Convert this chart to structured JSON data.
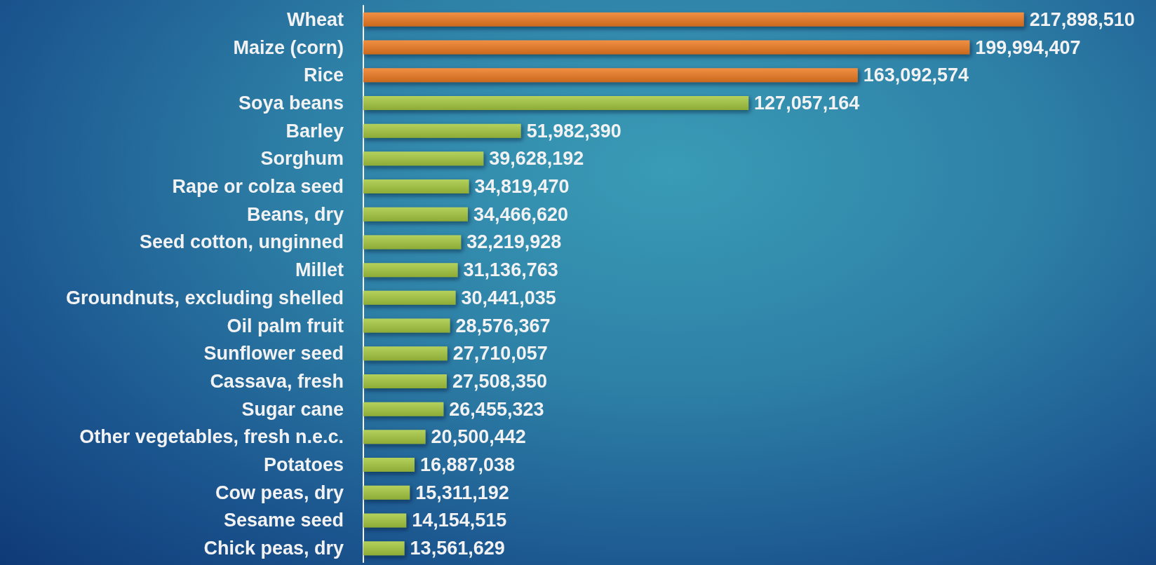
{
  "chart_data": {
    "type": "bar",
    "orientation": "horizontal",
    "categories": [
      "Wheat",
      "Maize (corn)",
      "Rice",
      "Soya beans",
      "Barley",
      "Sorghum",
      "Rape or colza seed",
      "Beans, dry",
      "Seed cotton, unginned",
      "Millet",
      "Groundnuts, excluding shelled",
      "Oil palm fruit",
      "Sunflower seed",
      "Cassava, fresh",
      "Sugar cane",
      "Other vegetables, fresh n.e.c.",
      "Potatoes",
      "Cow peas, dry",
      "Sesame seed",
      "Chick peas, dry"
    ],
    "values": [
      217898510,
      199994407,
      163092574,
      127057164,
      51982390,
      39628192,
      34819470,
      34466620,
      32219928,
      31136763,
      30441035,
      28576367,
      27710057,
      27508350,
      26455323,
      20500442,
      16887038,
      15311192,
      14154515,
      13561629
    ],
    "value_labels": [
      "217,898,510",
      "199,994,407",
      "163,092,574",
      "127,057,164",
      "51,982,390",
      "39,628,192",
      "34,819,470",
      "34,466,620",
      "32,219,928",
      "31,136,763",
      "30,441,035",
      "28,576,367",
      "27,710,057",
      "27,508,350",
      "26,455,323",
      "20,500,442",
      "16,887,038",
      "15,311,192",
      "14,154,515",
      "13,561,629"
    ],
    "colors": [
      "#ee7b22",
      "#ee7b22",
      "#ee7b22",
      "#a6c93f",
      "#a6c93f",
      "#a6c93f",
      "#a6c93f",
      "#a6c93f",
      "#a6c93f",
      "#a6c93f",
      "#a6c93f",
      "#a6c93f",
      "#a6c93f",
      "#a6c93f",
      "#a6c93f",
      "#a6c93f",
      "#a6c93f",
      "#a6c93f",
      "#a6c93f",
      "#a6c93f"
    ]
  }
}
